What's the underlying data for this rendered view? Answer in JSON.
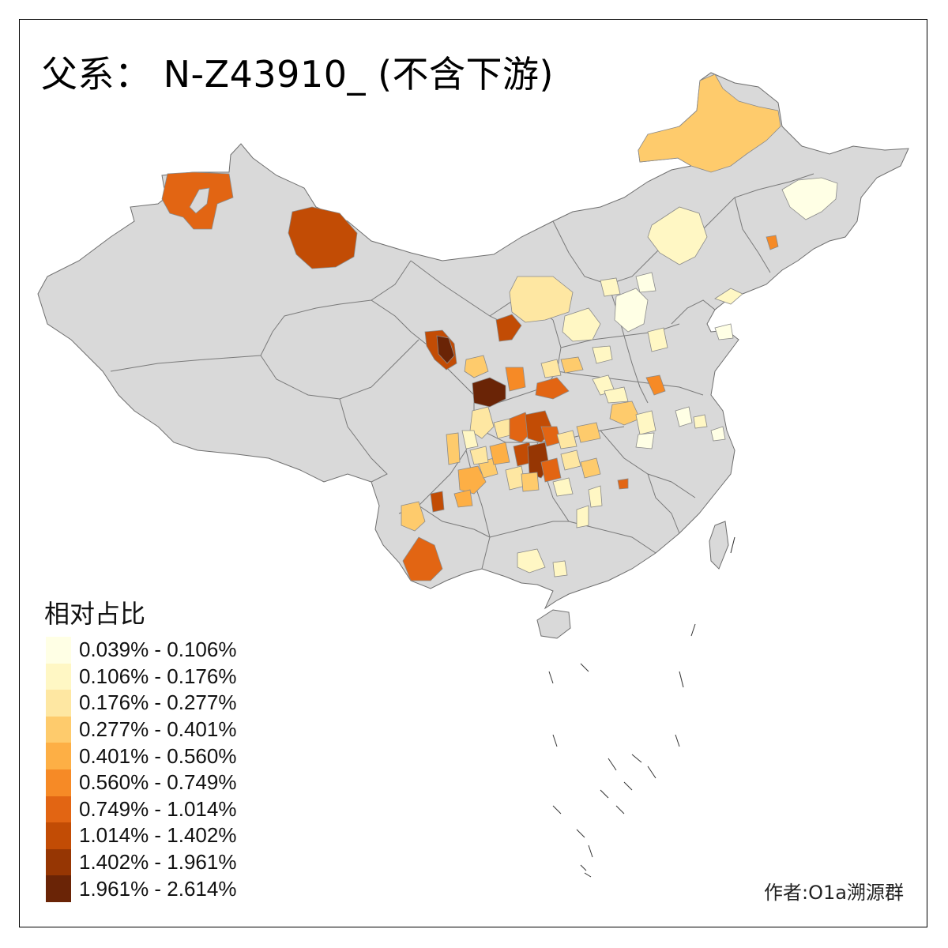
{
  "map": {
    "title": "父系： N-Z43910_ (不含下游)",
    "legend_title": "相对占比",
    "credit": "作者:O1a溯源群",
    "base_fill": "#d9d9d9",
    "legend": [
      {
        "label": "0.039% - 0.106%",
        "color": "#ffffe5"
      },
      {
        "label": "0.106% - 0.176%",
        "color": "#fff7c4"
      },
      {
        "label": "0.176% - 0.277%",
        "color": "#fee7a2"
      },
      {
        "label": "0.277% - 0.401%",
        "color": "#fecb6c"
      },
      {
        "label": "0.401% - 0.560%",
        "color": "#fdaf45"
      },
      {
        "label": "0.560% - 0.749%",
        "color": "#f68a26"
      },
      {
        "label": "0.749% - 1.014%",
        "color": "#e26513"
      },
      {
        "label": "1.014% - 1.402%",
        "color": "#c24c05"
      },
      {
        "label": "1.402% - 1.961%",
        "color": "#963603"
      },
      {
        "label": "1.961% - 2.614%",
        "color": "#6a2406"
      }
    ]
  }
}
